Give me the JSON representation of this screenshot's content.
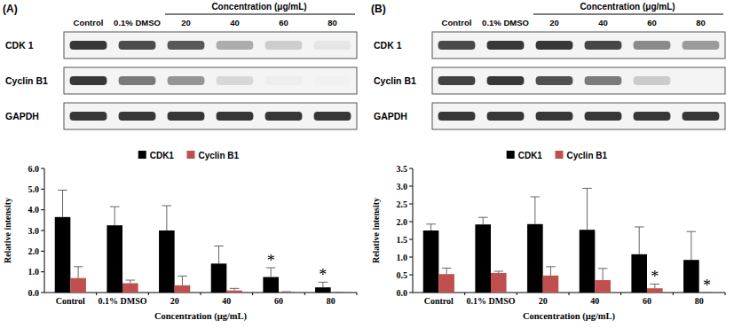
{
  "chart_data": [
    {
      "panel_label": "(A)",
      "type": "bar",
      "blot": {
        "header": "Concentration (μg/mL)",
        "lanes": [
          "Control",
          "0.1% DMSO",
          "20",
          "40",
          "60",
          "80"
        ],
        "rows": [
          "CDK 1",
          "Cyclin B1",
          "GAPDH"
        ]
      },
      "categories": [
        "Control",
        "0.1% DMSO",
        "20",
        "40",
        "60",
        "80"
      ],
      "series": [
        {
          "name": "CDK1",
          "color": "#000000",
          "values": [
            3.65,
            3.25,
            3.0,
            1.4,
            0.75,
            0.25
          ],
          "errors": [
            1.3,
            0.9,
            1.2,
            0.85,
            0.45,
            0.25
          ]
        },
        {
          "name": "Cyclin B1",
          "color": "#c0504d",
          "values": [
            0.7,
            0.45,
            0.35,
            0.1,
            0.02,
            0.01
          ],
          "errors": [
            0.55,
            0.15,
            0.45,
            0.1,
            0.02,
            0.01
          ]
        }
      ],
      "y_label": "Relative intensity",
      "x_label": "Concentration (μg/mL)",
      "ylim": [
        0,
        6
      ],
      "yticks": [
        {
          "value": 0,
          "label": "0.0"
        },
        {
          "value": 1,
          "label": "1.0"
        },
        {
          "value": 2,
          "label": "2.0"
        },
        {
          "value": 3,
          "label": "3.0"
        },
        {
          "value": 4,
          "label": "4.0"
        },
        {
          "value": 5,
          "label": "5.0"
        },
        {
          "value": 6,
          "label": "6.0"
        }
      ],
      "legend": "top",
      "annotations": [
        {
          "text": "*",
          "series": "CDK1",
          "category": "60"
        },
        {
          "text": "*",
          "series": "CDK1",
          "category": "80"
        }
      ]
    },
    {
      "panel_label": "(B)",
      "type": "bar",
      "blot": {
        "header": "Concentration (μg/mL)",
        "lanes": [
          "Control",
          "0.1% DMSO",
          "20",
          "40",
          "60",
          "80"
        ],
        "rows": [
          "CDK 1",
          "Cyclin B1",
          "GAPDH"
        ]
      },
      "categories": [
        "Control",
        "0.1% DMSO",
        "20",
        "40",
        "60",
        "80"
      ],
      "series": [
        {
          "name": "CDK1",
          "color": "#000000",
          "values": [
            1.75,
            1.92,
            1.93,
            1.77,
            1.08,
            0.92
          ],
          "errors": [
            0.18,
            0.2,
            0.77,
            1.17,
            0.77,
            0.8
          ]
        },
        {
          "name": "Cyclin B1",
          "color": "#c0504d",
          "values": [
            0.52,
            0.55,
            0.48,
            0.35,
            0.12,
            0.0
          ],
          "errors": [
            0.17,
            0.05,
            0.25,
            0.33,
            0.12,
            0.0
          ]
        }
      ],
      "y_label": "Relative intensity",
      "x_label": "Concentration (μg/mL)",
      "ylim": [
        0,
        3.5
      ],
      "yticks": [
        {
          "value": 0,
          "label": "0.0"
        },
        {
          "value": 0.5,
          "label": "0.5"
        },
        {
          "value": 1,
          "label": "1.0"
        },
        {
          "value": 1.5,
          "label": "1.5"
        },
        {
          "value": 2,
          "label": "2.0"
        },
        {
          "value": 2.5,
          "label": "2.5"
        },
        {
          "value": 3,
          "label": "3.0"
        },
        {
          "value": 3.5,
          "label": "3.5"
        }
      ],
      "legend": "top",
      "annotations": [
        {
          "text": "*",
          "series": "Cyclin B1",
          "category": "60"
        },
        {
          "text": "*",
          "series": "Cyclin B1",
          "category": "80"
        }
      ]
    }
  ]
}
